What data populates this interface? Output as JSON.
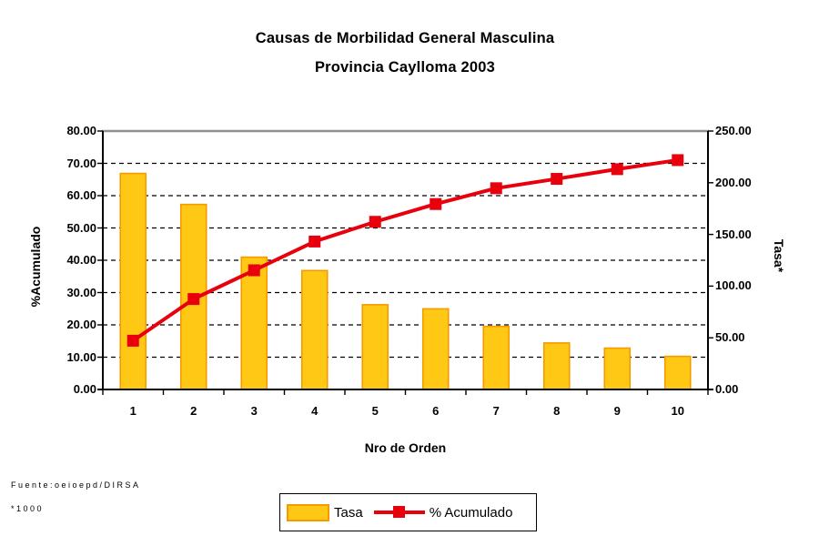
{
  "title": {
    "line1": "Causas de Morbilidad General Masculina",
    "line2": "Provincia Caylloma 2003"
  },
  "axes": {
    "left_title": "%Acumulado",
    "right_title": "Tasa*",
    "x_title": "Nro de Orden"
  },
  "legend": {
    "tasa_label": "Tasa",
    "acumulado_label": "% Acumulado"
  },
  "footer": {
    "source": "Fuente:oeioepd/DIRSA",
    "note": "*1000"
  },
  "colors": {
    "bar_fill": "#FFC814",
    "bar_border": "#F59B00",
    "line": "#E8000D",
    "marker": "#E8000D",
    "grid": "#000000",
    "axis": "#000000",
    "plot_border_top": "#909090"
  },
  "chart_data": {
    "type": "bar",
    "subtype": "pareto-combo-bar-line",
    "title": "Causas de Morbilidad General Masculina — Provincia Caylloma 2003",
    "xlabel": "Nro de Orden",
    "categories": [
      "1",
      "2",
      "3",
      "4",
      "5",
      "6",
      "7",
      "8",
      "9",
      "10"
    ],
    "series": [
      {
        "name": "Tasa",
        "type": "bar",
        "axis": "right",
        "values": [
          209,
          179,
          128,
          115,
          82,
          78,
          61,
          45,
          40,
          32
        ]
      },
      {
        "name": "% Acumulado",
        "type": "line",
        "axis": "left",
        "values": [
          15.1,
          28.0,
          36.9,
          45.8,
          51.9,
          57.4,
          62.3,
          65.2,
          68.2,
          71.0
        ]
      }
    ],
    "left_axis": {
      "label": "%Acumulado",
      "min": 0,
      "max": 80,
      "step": 10,
      "decimals": 2
    },
    "right_axis": {
      "label": "Tasa*",
      "min": 0,
      "max": 250,
      "step": 50,
      "decimals": 2
    },
    "grid": "horizontal-dashed",
    "legend_position": "bottom-center"
  }
}
